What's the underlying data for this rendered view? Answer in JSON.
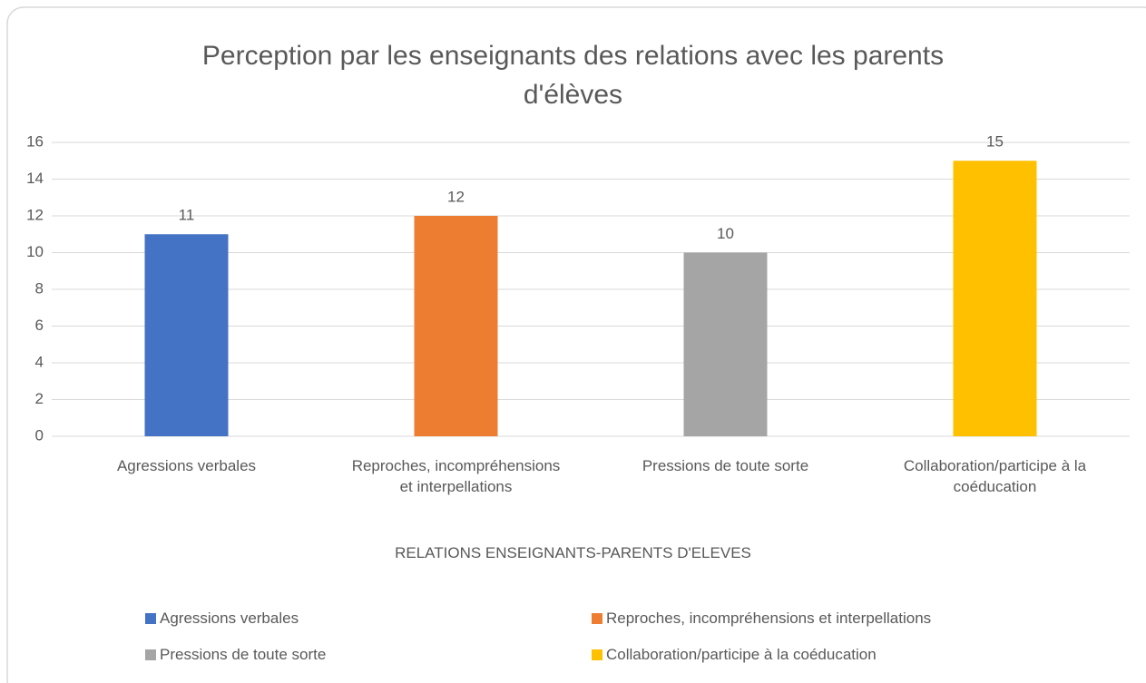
{
  "chart_data": {
    "type": "bar",
    "title": "Perception par les enseignants des relations avec les parents d'élèves",
    "x_label": "RELATIONS ENSEIGNANTS-PARENTS D'ELEVES",
    "categories": [
      "Agressions verbales",
      "Reproches, incompréhensions et interpellations",
      "Pressions de toute sorte",
      "Collaboration/participe à la coéducation"
    ],
    "values": [
      11,
      12,
      10,
      15
    ],
    "colors": [
      "#4472c4",
      "#ed7d31",
      "#a5a5a5",
      "#ffc000"
    ],
    "ylim": [
      0,
      16
    ],
    "yticks": [
      0,
      2,
      4,
      6,
      8,
      10,
      12,
      14,
      16
    ],
    "grid": true,
    "legend": "bottom"
  }
}
